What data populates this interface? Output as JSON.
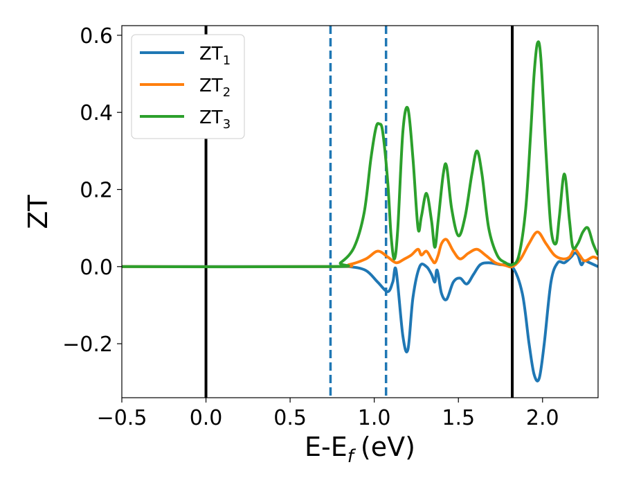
{
  "chart_data": {
    "type": "line",
    "title": "",
    "xlabel": "E-E",
    "xlabel_sub": "f",
    "xlabel_unit": "(eV)",
    "ylabel": "ZT",
    "xlim": [
      -0.5,
      2.33
    ],
    "ylim": [
      -0.34,
      0.625
    ],
    "xticks": [
      -0.5,
      0.0,
      0.5,
      1.0,
      1.5,
      2.0
    ],
    "xtick_labels": [
      "−0.5",
      "0.0",
      "0.5",
      "1.0",
      "1.5",
      "2.0"
    ],
    "yticks": [
      -0.2,
      0.0,
      0.2,
      0.4,
      0.6
    ],
    "ytick_labels": [
      "−0.2",
      "0.0",
      "0.2",
      "0.4",
      "0.6"
    ],
    "grid": false,
    "legend_position": "top-left",
    "vlines": [
      {
        "x": 0.0,
        "style": "solid",
        "color": "#000000"
      },
      {
        "x": 0.74,
        "style": "dashed",
        "color": "#1f77b4"
      },
      {
        "x": 1.07,
        "style": "dashed",
        "color": "#1f77b4"
      },
      {
        "x": 1.82,
        "style": "solid",
        "color": "#000000"
      }
    ],
    "series": [
      {
        "name": "ZT",
        "name_sub": "1",
        "color": "#1f77b4",
        "x": [
          -0.5,
          0.74,
          0.85,
          0.95,
          1.02,
          1.08,
          1.11,
          1.13,
          1.17,
          1.2,
          1.23,
          1.27,
          1.31,
          1.34,
          1.36,
          1.37,
          1.38,
          1.4,
          1.43,
          1.47,
          1.51,
          1.55,
          1.59,
          1.63,
          1.68,
          1.75,
          1.82,
          1.88,
          1.92,
          1.95,
          1.98,
          2.01,
          2.05,
          2.09,
          2.13,
          2.17,
          2.19,
          2.21,
          2.23,
          2.25,
          2.28,
          2.33
        ],
        "y": [
          0,
          0,
          0.0,
          -0.01,
          -0.04,
          -0.065,
          -0.04,
          -0.01,
          -0.18,
          -0.215,
          -0.08,
          0.0,
          0.0,
          -0.02,
          -0.04,
          -0.01,
          -0.02,
          -0.07,
          -0.085,
          -0.04,
          -0.03,
          -0.045,
          -0.02,
          0.005,
          0.01,
          0.005,
          0.0,
          -0.07,
          -0.2,
          -0.28,
          -0.29,
          -0.2,
          -0.04,
          0.01,
          0.01,
          0.025,
          0.035,
          0.03,
          0.005,
          0.015,
          0.01,
          0.0
        ]
      },
      {
        "name": "ZT",
        "name_sub": "2",
        "color": "#ff7f0e",
        "x": [
          -0.5,
          0.74,
          0.85,
          0.95,
          1.02,
          1.08,
          1.13,
          1.18,
          1.22,
          1.26,
          1.28,
          1.31,
          1.34,
          1.36,
          1.38,
          1.4,
          1.43,
          1.47,
          1.51,
          1.56,
          1.61,
          1.66,
          1.72,
          1.78,
          1.82,
          1.87,
          1.92,
          1.97,
          2.02,
          2.07,
          2.12,
          2.16,
          2.19,
          2.22,
          2.25,
          2.3,
          2.33
        ],
        "y": [
          0,
          0,
          0.005,
          0.02,
          0.04,
          0.025,
          0.01,
          0.02,
          0.03,
          0.045,
          0.03,
          0.04,
          0.02,
          0.01,
          0.03,
          0.06,
          0.07,
          0.04,
          0.02,
          0.035,
          0.045,
          0.03,
          0.01,
          0.003,
          0.0,
          0.02,
          0.06,
          0.09,
          0.06,
          0.03,
          0.02,
          0.025,
          0.045,
          0.03,
          0.015,
          0.025,
          0.02
        ]
      },
      {
        "name": "ZT",
        "name_sub": "3",
        "color": "#2ca02c",
        "x": [
          -0.5,
          0.74,
          0.8,
          0.88,
          0.94,
          0.98,
          1.01,
          1.03,
          1.05,
          1.08,
          1.1,
          1.12,
          1.14,
          1.17,
          1.2,
          1.23,
          1.26,
          1.28,
          1.31,
          1.34,
          1.36,
          1.38,
          1.41,
          1.43,
          1.46,
          1.5,
          1.54,
          1.58,
          1.61,
          1.64,
          1.68,
          1.73,
          1.78,
          1.82,
          1.86,
          1.9,
          1.93,
          1.95,
          1.97,
          1.99,
          2.02,
          2.05,
          2.08,
          2.1,
          2.13,
          2.16,
          2.18,
          2.21,
          2.24,
          2.27,
          2.3,
          2.33
        ],
        "y": [
          0,
          0,
          0.01,
          0.05,
          0.14,
          0.28,
          0.36,
          0.37,
          0.35,
          0.22,
          0.08,
          0.02,
          0.1,
          0.35,
          0.41,
          0.28,
          0.1,
          0.13,
          0.19,
          0.12,
          0.05,
          0.12,
          0.24,
          0.26,
          0.15,
          0.08,
          0.13,
          0.24,
          0.3,
          0.24,
          0.1,
          0.03,
          0.01,
          0.005,
          0.03,
          0.15,
          0.35,
          0.5,
          0.58,
          0.54,
          0.3,
          0.1,
          0.06,
          0.13,
          0.24,
          0.12,
          0.05,
          0.06,
          0.09,
          0.1,
          0.06,
          0.03
        ]
      }
    ]
  }
}
